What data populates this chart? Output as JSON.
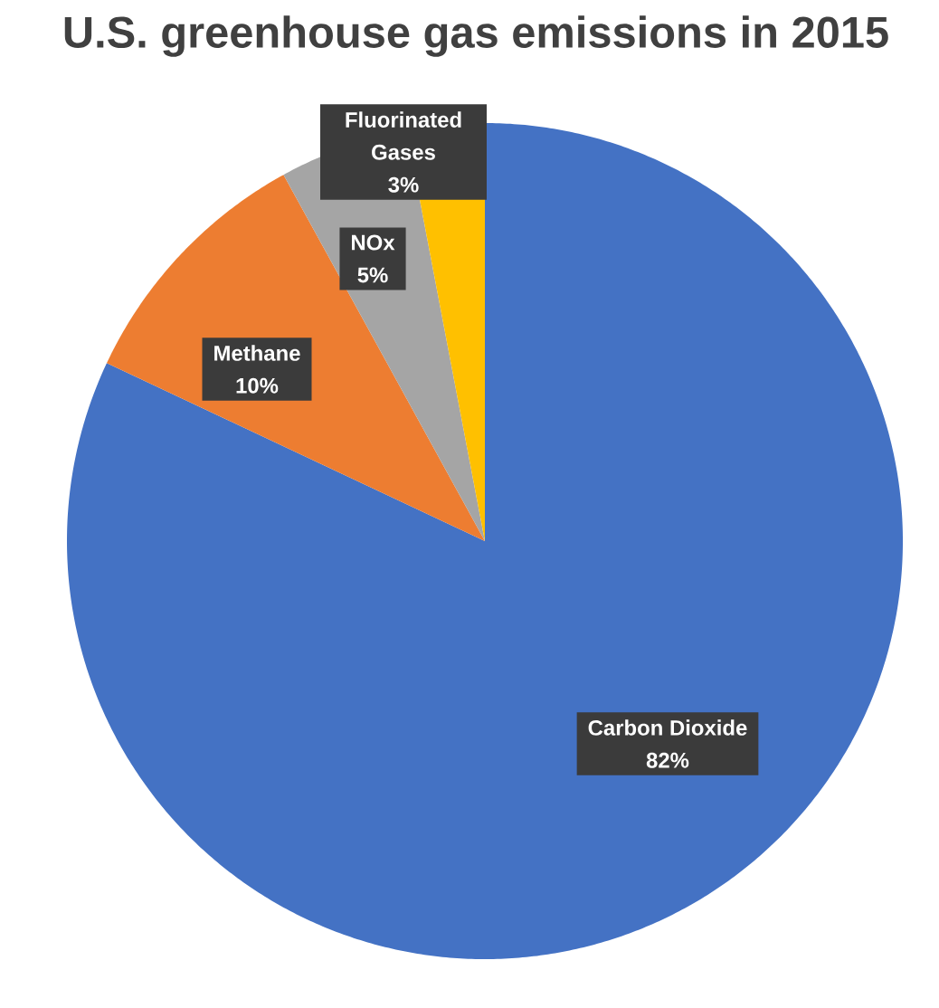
{
  "chart_data": {
    "type": "pie",
    "title": "U.S. greenhouse gas emissions in 2015",
    "categories": [
      "Carbon Dioxide",
      "Methane",
      "NOx",
      "Fluorinated Gases"
    ],
    "values": [
      82,
      10,
      5,
      3
    ],
    "colors": [
      "#4472c4",
      "#ed7d31",
      "#a5a5a5",
      "#ffc000"
    ],
    "value_labels": [
      "82%",
      "10%",
      "5%",
      "3%"
    ]
  }
}
